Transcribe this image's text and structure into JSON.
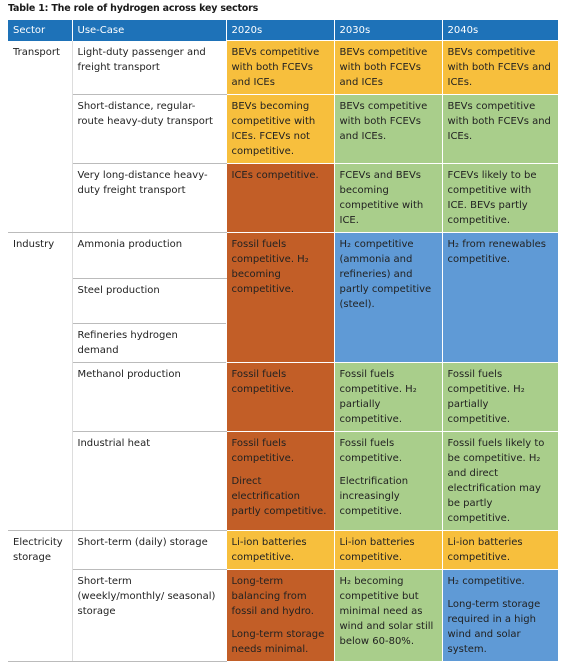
{
  "title": "Table 1: The role of hydrogen across key sectors",
  "header": [
    "Sector",
    "Use-Case",
    "2020s",
    "2030s",
    "2040s"
  ],
  "sectors": [
    {
      "name": "Transport",
      "rows": [
        {
          "use_case": "Light-duty passenger and freight transport",
          "cells": [
            {
              "paragraphs": [
                "BEVs competitive with both FCEVs and ICEs"
              ],
              "color": "#f7bf3d"
            },
            {
              "paragraphs": [
                "BEVs competitive with both FCEVs and ICEs"
              ],
              "color": "#f7bf3d"
            },
            {
              "paragraphs": [
                "BEVs competitive with both FCEVs and ICEs."
              ],
              "color": "#f7bf3d"
            }
          ]
        },
        {
          "use_case": "Short-distance, regular-route heavy-duty transport",
          "cells": [
            {
              "paragraphs": [
                "BEVs becoming competitive with ICEs. FCEVs not competitive."
              ],
              "color": "#f7bf3d"
            },
            {
              "paragraphs": [
                "BEVs competitive with both FCEVs and ICEs."
              ],
              "color": "#a9ce8b"
            },
            {
              "paragraphs": [
                "BEVs competitive with both FCEVs and ICEs."
              ],
              "color": "#a9ce8b"
            }
          ]
        },
        {
          "use_case": "Very long-distance heavy-duty freight transport",
          "cells": [
            {
              "paragraphs": [
                "ICEs competitive."
              ],
              "color": "#c25e27"
            },
            {
              "paragraphs": [
                "FCEVs and BEVs becoming competitive with ICE."
              ],
              "color": "#a9ce8b"
            },
            {
              "paragraphs": [
                "FCEVs likely to be competitive with ICE. BEVs partly competitive."
              ],
              "color": "#a9ce8b"
            }
          ]
        }
      ]
    },
    {
      "name": "Industry",
      "rows": [
        {
          "use_case": "Ammonia production",
          "cells": [
            {
              "paragraphs": [
                "Fossil fuels competitive. H₂ becoming competitive."
              ],
              "color": "#c25e27"
            },
            {
              "paragraphs": [
                "H₂ competitive (ammonia and refineries) and partly competitive (steel)."
              ],
              "color": "#5f9ad6"
            },
            {
              "paragraphs": [
                "H₂ from renewables competitive."
              ],
              "color": "#5f9ad6"
            }
          ]
        },
        {
          "use_case": "Steel production",
          "cells": []
        },
        {
          "use_case": "Refineries hydrogen demand",
          "cells": []
        },
        {
          "use_case": "Methanol production",
          "cells": [
            {
              "paragraphs": [
                "Fossil fuels competitive."
              ],
              "color": "#c25e27"
            },
            {
              "paragraphs": [
                "Fossil fuels competitive. H₂ partially competitive."
              ],
              "color": "#a9ce8b"
            },
            {
              "paragraphs": [
                "Fossil fuels competitive. H₂ partially competitive."
              ],
              "color": "#a9ce8b"
            }
          ]
        },
        {
          "use_case": "Industrial heat",
          "cells": [
            {
              "paragraphs": [
                "Fossil fuels competitive.",
                "Direct electrification partly competitive."
              ],
              "color": "#c25e27"
            },
            {
              "paragraphs": [
                "Fossil fuels competitive.",
                "Electrification increasingly competitive."
              ],
              "color": "#a9ce8b"
            },
            {
              "paragraphs": [
                "Fossil fuels likely to be competitive. H₂ and direct electrification may be partly competitive."
              ],
              "color": "#a9ce8b"
            }
          ]
        }
      ]
    },
    {
      "name": "Electricity storage",
      "rows": [
        {
          "use_case": "Short-term (daily) storage",
          "cells": [
            {
              "paragraphs": [
                "Li-ion batteries competitive."
              ],
              "color": "#f7bf3d"
            },
            {
              "paragraphs": [
                "Li-ion batteries competitive."
              ],
              "color": "#f7bf3d"
            },
            {
              "paragraphs": [
                "Li-ion batteries competitive."
              ],
              "color": "#f7bf3d"
            }
          ]
        },
        {
          "use_case": "Short-term (weekly/monthly/ seasonal) storage",
          "cells": [
            {
              "paragraphs": [
                "Long-term balancing from fossil and hydro.",
                "Long-term storage needs minimal."
              ],
              "color": "#c25e27"
            },
            {
              "paragraphs": [
                "H₂ becoming competitive but minimal need as wind and solar still below 60-80%."
              ],
              "color": "#a9ce8b"
            },
            {
              "paragraphs": [
                "H₂ competitive.",
                "Long-term storage required in a high wind and solar system."
              ],
              "color": "#5f9ad6"
            }
          ]
        }
      ]
    }
  ]
}
